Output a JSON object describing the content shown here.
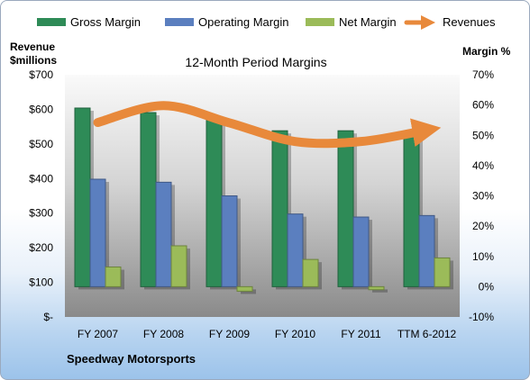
{
  "chart_data": {
    "type": "bar",
    "title": "12-Month Period Margins",
    "left_axis_title_line1": "Revenue",
    "left_axis_title_line2": "$millions",
    "right_axis_title": "Margin %",
    "footer": "Speedway Motorsports",
    "categories": [
      "FY 2007",
      "FY 2008",
      "FY 2009",
      "FY 2010",
      "FY 2011",
      "TTM 6-2012"
    ],
    "left_ticks": [
      "$-",
      "$100",
      "$200",
      "$300",
      "$400",
      "$500",
      "$600",
      "$700"
    ],
    "left_ylim": [
      0,
      700
    ],
    "right_ticks": [
      "-10%",
      "0%",
      "10%",
      "20%",
      "30%",
      "40%",
      "50%",
      "60%",
      "70%"
    ],
    "right_ylim": [
      -10,
      70
    ],
    "series": [
      {
        "name": "Gross Margin",
        "axis": "right",
        "values": [
          59,
          57.5,
          55,
          51.5,
          51.5,
          51
        ],
        "color": "#2e8b57"
      },
      {
        "name": "Operating Margin",
        "axis": "right",
        "values": [
          35.5,
          34.5,
          30,
          24,
          23,
          23.5
        ],
        "color": "#5b7fbf"
      },
      {
        "name": "Net Margin",
        "axis": "right",
        "values": [
          6.5,
          13.5,
          -1.5,
          9,
          -1,
          9.5
        ],
        "color": "#9bbb59"
      },
      {
        "name": "Revenues",
        "axis": "left",
        "type": "line",
        "values": [
          562,
          611,
          561,
          507,
          507,
          540
        ],
        "color": "#e8893b"
      }
    ],
    "legend_position": "top",
    "grid": false
  }
}
